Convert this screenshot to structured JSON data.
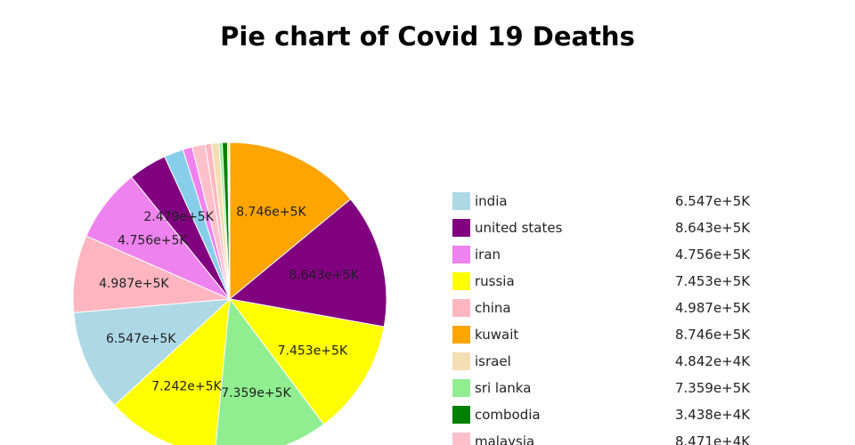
{
  "chart_data": {
    "type": "pie",
    "title": "Pie chart of Covid 19 Deaths",
    "slices": [
      {
        "label": "kuwait",
        "value": 874600,
        "display": "8.746e+5K",
        "color": "#ffa500"
      },
      {
        "label": "united states",
        "value": 864300,
        "display": "8.643e+5K",
        "color": "#800080"
      },
      {
        "label": "russia",
        "value": 745300,
        "display": "7.453e+5K",
        "color": "#ffff00"
      },
      {
        "label": "sri lanka",
        "value": 735900,
        "display": "7.359e+5K",
        "color": "#90ee90"
      },
      {
        "label": "",
        "value": 724200,
        "display": "7.242e+5K",
        "color": "#ffff00"
      },
      {
        "label": "india",
        "value": 654700,
        "display": "6.547e+5K",
        "color": "#add8e6"
      },
      {
        "label": "china",
        "value": 498700,
        "display": "4.987e+5K",
        "color": "#ffb6c1"
      },
      {
        "label": "iran",
        "value": 475600,
        "display": "4.756e+5K",
        "color": "#ee82ee"
      },
      {
        "label": "",
        "value": 247900,
        "display": "2.479e+5K",
        "color": "#800080"
      },
      {
        "label": "",
        "value": 125000,
        "display": "",
        "color": "#87ceeb"
      },
      {
        "label": "",
        "value": 60000,
        "display": "",
        "color": "#ee82ee"
      },
      {
        "label": "malaysia",
        "value": 84710,
        "display": "",
        "color": "#ffc0cb"
      },
      {
        "label": "",
        "value": 40000,
        "display": "",
        "color": "#ffb6c1"
      },
      {
        "label": "israel",
        "value": 48420,
        "display": "",
        "color": "#f5deb3"
      },
      {
        "label": "",
        "value": 20000,
        "display": "",
        "color": "#90ee90"
      },
      {
        "label": "combodia",
        "value": 34380,
        "display": "",
        "color": "#008000"
      },
      {
        "label": "",
        "value": 8000,
        "display": "",
        "color": "#ffa500"
      },
      {
        "label": "",
        "value": 6000,
        "display": "",
        "color": "#ff4500"
      }
    ]
  },
  "legend": [
    {
      "label": "india",
      "value": "6.547e+5K",
      "color": "#add8e6"
    },
    {
      "label": "united states",
      "value": "8.643e+5K",
      "color": "#800080"
    },
    {
      "label": "iran",
      "value": "4.756e+5K",
      "color": "#ee82ee"
    },
    {
      "label": "russia",
      "value": "7.453e+5K",
      "color": "#ffff00"
    },
    {
      "label": "china",
      "value": "4.987e+5K",
      "color": "#ffb6c1"
    },
    {
      "label": "kuwait",
      "value": "8.746e+5K",
      "color": "#ffa500"
    },
    {
      "label": "israel",
      "value": "4.842e+4K",
      "color": "#f5deb3"
    },
    {
      "label": "sri lanka",
      "value": "7.359e+5K",
      "color": "#90ee90"
    },
    {
      "label": "combodia",
      "value": "3.438e+4K",
      "color": "#008000"
    },
    {
      "label": "malaysia",
      "value": "8.471e+4K",
      "color": "#ffc0cb"
    }
  ]
}
